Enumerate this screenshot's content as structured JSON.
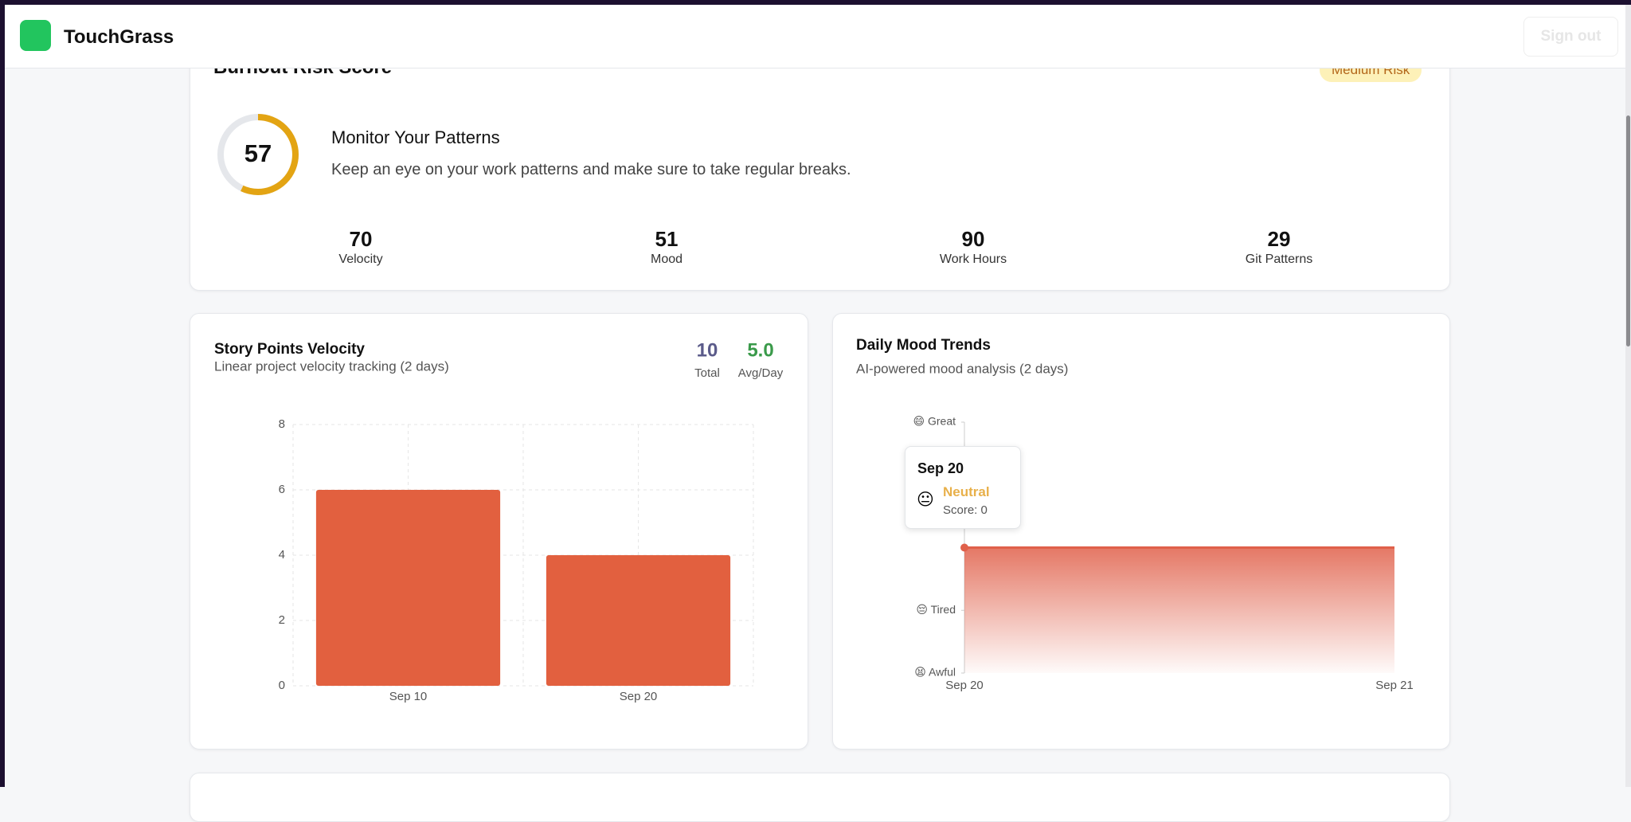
{
  "app": {
    "name": "TouchGrass",
    "sign_out": "Sign out"
  },
  "risk": {
    "title": "Burnout Risk Score",
    "badge": "Medium Risk",
    "score": 57,
    "gauge_lim": [
      0,
      100
    ],
    "heading": "Monitor Your Patterns",
    "text": "Keep an eye on your work patterns and make sure to take regular breaks.",
    "metrics": [
      {
        "value": 70,
        "label": "Velocity"
      },
      {
        "value": 51,
        "label": "Mood"
      },
      {
        "value": 90,
        "label": "Work Hours"
      },
      {
        "value": 29,
        "label": "Git Patterns"
      }
    ]
  },
  "chart_data": [
    {
      "type": "bar",
      "title": "Story Points Velocity",
      "subtitle": "Linear project velocity tracking (2 days)",
      "stats": [
        {
          "value": "10",
          "label": "Total",
          "color": "#5b5b8a"
        },
        {
          "value": "5.0",
          "label": "Avg/Day",
          "color": "#3a9a4a"
        }
      ],
      "categories": [
        "Sep 10",
        "Sep 20"
      ],
      "values": [
        6,
        4
      ],
      "color": "#e2603f",
      "ylim": [
        0,
        8
      ],
      "yticks": [
        0,
        2,
        4,
        6,
        8
      ],
      "grid": true
    },
    {
      "type": "area",
      "title": "Daily Mood Trends",
      "subtitle": "AI-powered mood analysis (2 days)",
      "categories": [
        "Sep 20",
        "Sep 21"
      ],
      "values": [
        0,
        0
      ],
      "color": "#e0604a",
      "ylim": [
        -2,
        2
      ],
      "yticks": [
        {
          "value": -2,
          "label": "😫 Awful"
        },
        {
          "value": -1,
          "label": "😔 Tired"
        },
        {
          "value": 2,
          "label": "😄 Great"
        }
      ],
      "tooltip": {
        "date": "Sep 20",
        "emoji": "😐",
        "mood": "Neutral",
        "score": "Score: 0"
      }
    }
  ]
}
